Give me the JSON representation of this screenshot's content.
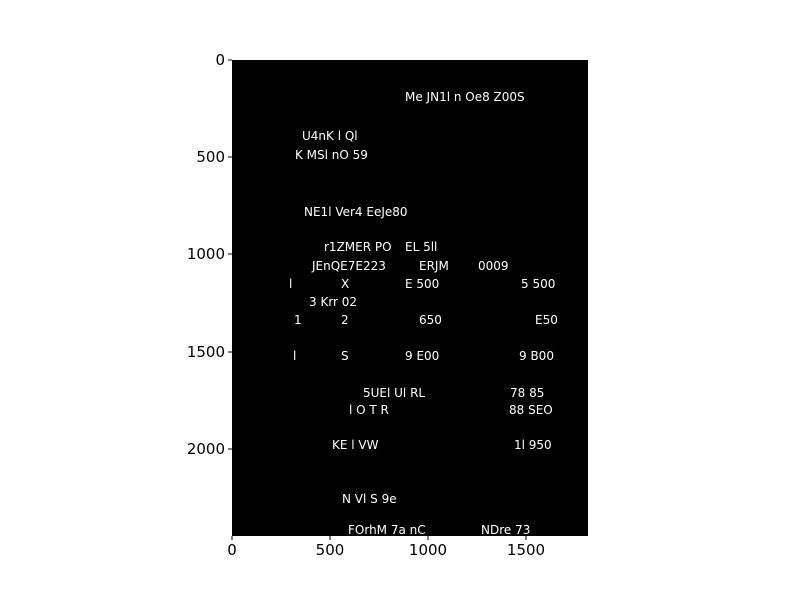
{
  "colors": {
    "page": "#ffffff",
    "image_background": "#000000",
    "text": "#ffffff",
    "axis": "#000000"
  },
  "axes": {
    "x_ticks": [
      "0",
      "500",
      "1000",
      "1500"
    ],
    "y_ticks": [
      "0",
      "500",
      "1000",
      "1500",
      "2000"
    ]
  },
  "image_text": [
    "Me JN1l n Oe8 Z00S",
    "U4nK l Ql",
    "K MSl nO 59",
    "NE1l Ver4 EeJe80",
    "r1ZMER PO",
    "EL 5ll",
    "JEnQE7E223",
    "ERJM",
    "0009",
    "l",
    "X",
    "E 500",
    "5 500",
    "3 Krr 02",
    "1",
    "2",
    "650",
    "E50",
    "l",
    "S",
    "9 E00",
    "9 B00",
    "5UEl Ul RL",
    "78 85",
    "l O T R",
    "88 SEO",
    "KE l VW",
    "1l 950",
    "N Vl S 9e",
    "FOrhM 7a nC",
    "NDre 73"
  ]
}
